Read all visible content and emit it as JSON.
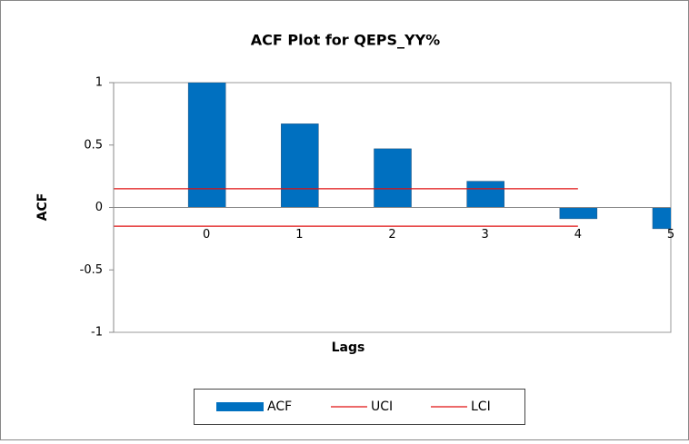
{
  "chart_data": {
    "type": "bar",
    "title": "ACF Plot for QEPS_YY%",
    "x_label": "Lags",
    "y_label": "ACF",
    "categories": [
      null,
      "0",
      "1",
      "2",
      "3",
      "4",
      "5"
    ],
    "series": [
      {
        "name": "ACF",
        "type": "bar",
        "color": "#0070c0",
        "values": [
          null,
          1,
          0.67,
          0.47,
          0.21,
          -0.09,
          -0.17
        ]
      },
      {
        "name": "UCI",
        "type": "line",
        "color": "#e01010",
        "values": [
          0.15,
          0.15,
          0.15,
          0.15,
          0.15,
          0.15,
          null
        ]
      },
      {
        "name": "LCI",
        "type": "line",
        "color": "#e01010",
        "values": [
          -0.15,
          -0.15,
          -0.15,
          -0.15,
          -0.15,
          -0.15,
          null
        ]
      }
    ],
    "ylim": [
      -1,
      1
    ],
    "yticks": [
      1,
      0.5,
      0,
      -0.5,
      -1
    ],
    "grid": false,
    "legend": "bottom"
  }
}
